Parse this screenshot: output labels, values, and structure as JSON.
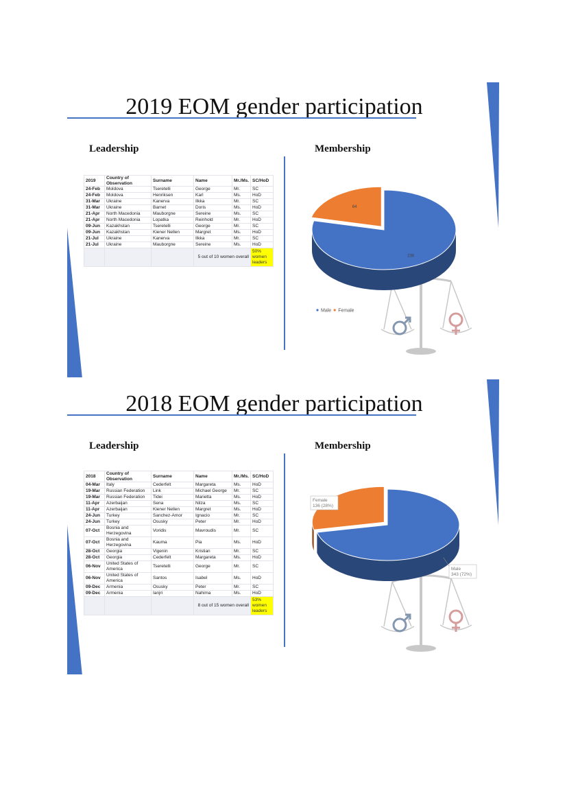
{
  "slides": [
    {
      "title": "2019 EOM gender participation",
      "leadership_heading": "Leadership",
      "membership_heading": "Membership",
      "table": {
        "header": [
          "2019",
          "Country of Observation",
          "Surname",
          "Name",
          "Mr./Ms.",
          "SC/HoD"
        ],
        "rows": [
          [
            "24-Feb",
            "Moldova",
            "Tseretelli",
            "George",
            "Mr.",
            "SC"
          ],
          [
            "24-Feb",
            "Moldova",
            "Henriksen",
            "Karl",
            "Ms.",
            "HoD"
          ],
          [
            "31-Mar",
            "Ukraine",
            "Kanerva",
            "Ilkka",
            "Mr.",
            "SC"
          ],
          [
            "31-Mar",
            "Ukraine",
            "Barnet",
            "Doris",
            "Ms.",
            "HoD"
          ],
          [
            "21-Apr",
            "North Macedonia",
            "Mauborgne",
            "Sereine",
            "Ms.",
            "SC"
          ],
          [
            "21-Apr",
            "North Macedonia",
            "Lopatka",
            "Reinhold",
            "Mr.",
            "HoD"
          ],
          [
            "09-Jun",
            "Kazakhstan",
            "Tseretelli",
            "George",
            "Mr.",
            "SC"
          ],
          [
            "09-Jun",
            "Kazakhstan",
            "Kiener Nellen",
            "Margret",
            "Ms.",
            "HoD"
          ],
          [
            "21-Jul",
            "Ukraine",
            "Kanerva",
            "Ilkka",
            "Mr.",
            "SC"
          ],
          [
            "21-Jul",
            "Ukraine",
            "Mauborgne",
            "Sereine",
            "Ms.",
            "HoD"
          ]
        ],
        "footer": {
          "summary": "5 out of 10 women overall",
          "share": "50% women leaders"
        }
      },
      "chart_data": {
        "type": "pie",
        "categories": [
          "Male",
          "Female"
        ],
        "values": [
          236,
          64
        ],
        "colors": [
          "#4472c4",
          "#ed7d31"
        ],
        "legend": "bottom"
      }
    },
    {
      "title": "2018 EOM gender participation",
      "leadership_heading": "Leadership",
      "membership_heading": "Membership",
      "table": {
        "header": [
          "2018",
          "Country of Observation",
          "Surname",
          "Name",
          "Mr./Ms.",
          "SC/HoD"
        ],
        "rows": [
          [
            "04-Mar",
            "Italy",
            "Cederfelt",
            "Margareta",
            "Ms.",
            "HoD"
          ],
          [
            "19-Mar",
            "Russian Federation",
            "Link",
            "Michael George",
            "Mr.",
            "SC"
          ],
          [
            "19-Mar",
            "Russian Federation",
            "Tidei",
            "Marietta",
            "Ms.",
            "HoD"
          ],
          [
            "11-Apr",
            "Azerbaijan",
            "Sena",
            "Nilza",
            "Ms.",
            "SC"
          ],
          [
            "11-Apr",
            "Azerbaijan",
            "Kiener Nellen",
            "Margret",
            "Ms.",
            "HoD"
          ],
          [
            "24-Jun",
            "Turkey",
            "Sanchez-Amor",
            "Ignacio",
            "Mr.",
            "SC"
          ],
          [
            "24-Jun",
            "Turkey",
            "Osusky",
            "Peter",
            "Mr.",
            "HoD"
          ],
          [
            "07-Oct",
            "Bosnia and Herzegovina",
            "Voridis",
            "Mavroudis",
            "Mr.",
            "SC"
          ],
          [
            "07-Oct",
            "Bosnia and Herzegovina",
            "Kauma",
            "Pia",
            "Ms.",
            "HoD"
          ],
          [
            "28-Oct",
            "Georgia",
            "Vigenin",
            "Kristian",
            "Mr.",
            "SC"
          ],
          [
            "28-Oct",
            "Georgia",
            "Cederfelt",
            "Margareta",
            "Ms.",
            "HoD"
          ],
          [
            "06-Nov",
            "United States of America",
            "Tseretelli",
            "George",
            "Mr.",
            "SC"
          ],
          [
            "06-Nov",
            "United States of America",
            "Santos",
            "Isabel",
            "Ms.",
            "HoD"
          ],
          [
            "09-Dec",
            "Armenia",
            "Osusky",
            "Peter",
            "Mr.",
            "SC"
          ],
          [
            "09-Dec",
            "Armenia",
            "Ianjri",
            "Nahima",
            "Ms.",
            "HoD"
          ]
        ],
        "footer": {
          "summary": "8 out of 15 women overall",
          "share": "53% women leaders"
        }
      },
      "chart_data": {
        "type": "pie",
        "categories": [
          "Male",
          "Female"
        ],
        "values": [
          343,
          136
        ],
        "value_labels": [
          "343 (72%)",
          "136 (28%)"
        ],
        "colors": [
          "#4472c4",
          "#ed7d31"
        ]
      }
    }
  ]
}
